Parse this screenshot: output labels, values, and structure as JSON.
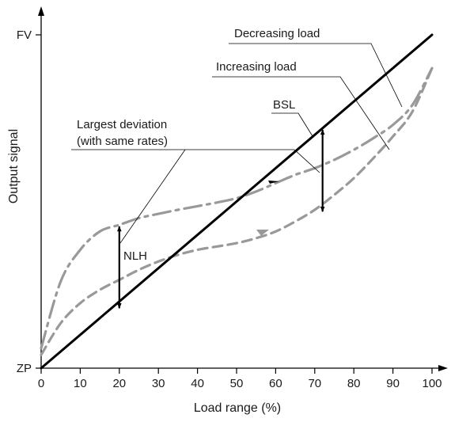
{
  "chart_data": {
    "type": "line",
    "xlabel": "Load range (%)",
    "ylabel": "Output signal",
    "xlim": [
      0,
      100
    ],
    "ylim": [
      0,
      100
    ],
    "x_ticks": [
      0,
      10,
      20,
      30,
      40,
      50,
      60,
      70,
      80,
      90,
      100
    ],
    "y_tick_labels": [
      "ZP",
      "FV"
    ],
    "grid": false,
    "series": [
      {
        "name": "BSL",
        "style": "solid",
        "color": "#000000",
        "x": [
          0,
          100
        ],
        "y": [
          0,
          100
        ]
      },
      {
        "name": "Increasing load",
        "style": "dashed",
        "color": "#999999",
        "x": [
          0,
          5,
          10,
          15,
          20,
          25,
          30,
          35,
          40,
          45,
          50,
          55,
          60,
          65,
          70,
          75,
          80,
          85,
          90,
          95,
          100
        ],
        "y": [
          4,
          13.5,
          19.5,
          23.5,
          26.5,
          29.5,
          32,
          34,
          35.5,
          36.5,
          37.5,
          39,
          41,
          44,
          47.5,
          52,
          57,
          63,
          69.5,
          77,
          90
        ]
      },
      {
        "name": "Decreasing load",
        "style": "dash-dot",
        "color": "#999999",
        "x": [
          0,
          5,
          10,
          15,
          20,
          25,
          30,
          35,
          40,
          45,
          50,
          55,
          60,
          65,
          70,
          75,
          80,
          85,
          90,
          95,
          100
        ],
        "y": [
          6,
          26,
          35.5,
          41,
          43,
          45,
          46.3,
          47.5,
          48.6,
          49.7,
          51,
          53,
          55.5,
          58,
          60,
          62.5,
          65.5,
          69,
          73,
          79,
          90
        ]
      }
    ],
    "annotations": {
      "decreasing": "Decreasing load",
      "increasing": "Increasing load",
      "bsl": "BSL",
      "largest_line1": "Largest deviation",
      "largest_line2": "(with same rates)",
      "nlh": "NLH"
    },
    "deviation_markers": [
      {
        "x": 20,
        "y_low": 17.5,
        "y_high": 43
      },
      {
        "x": 72,
        "y_low": 46.5,
        "y_high": 72
      }
    ]
  }
}
